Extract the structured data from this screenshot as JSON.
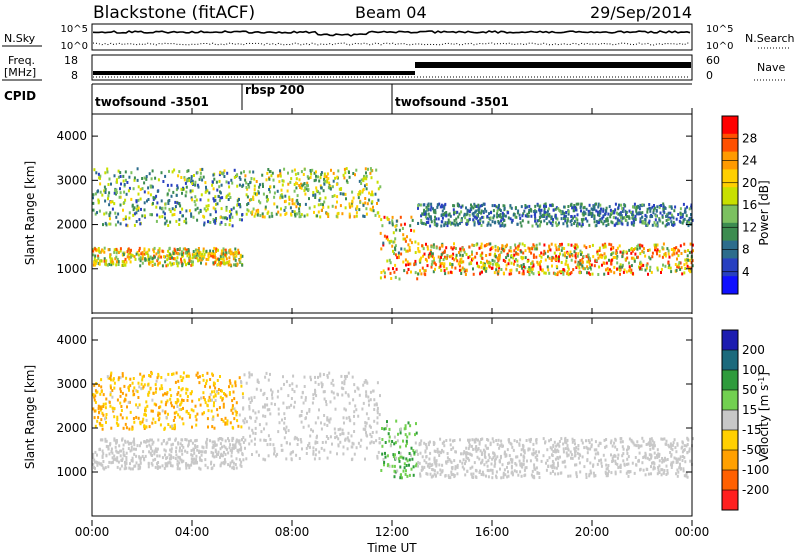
{
  "header": {
    "site": "Blackstone (fitACF)",
    "beam": "Beam 04",
    "date": "29/Sep/2014"
  },
  "top_panels": {
    "nsky": {
      "label": "N.Sky",
      "ticks": [
        "10^5",
        "10^0"
      ]
    },
    "nsearch": {
      "label": "N.Search",
      "ticks": [
        "10^5",
        "10^0"
      ]
    },
    "freq": {
      "label_line1": "Freq.",
      "label_line2": "[MHz]",
      "ticks": [
        "18",
        "8"
      ]
    },
    "nave": {
      "label": "Nave",
      "ticks": [
        "60",
        "0"
      ]
    },
    "cpid": {
      "label": "CPID",
      "segments": [
        {
          "name": "twofsound -3501",
          "start_h": 0,
          "end_h": 6
        },
        {
          "name": "rbsp 200",
          "start_h": 6,
          "end_h": 12
        },
        {
          "name": "twofsound -3501",
          "start_h": 12,
          "end_h": 24
        }
      ]
    }
  },
  "x_axis": {
    "label": "Time UT",
    "ticks": [
      "00:00",
      "04:00",
      "08:00",
      "12:00",
      "16:00",
      "20:00",
      "00:00"
    ]
  },
  "power_colorbar": {
    "label": "Power [dB]",
    "ticks": [
      "28",
      "24",
      "20",
      "16",
      "12",
      "8",
      "4"
    ],
    "colors": [
      "#ff0000",
      "#ff5000",
      "#ff9a00",
      "#ffd000",
      "#c8e000",
      "#7cc060",
      "#3c8c50",
      "#2c6c8c",
      "#2840c0",
      "#1010ff"
    ]
  },
  "velocity_colorbar": {
    "label": "Velocity [m s",
    "label_sup": "-1",
    "label_end": "]",
    "ticks": [
      "200",
      "100",
      "50",
      "15",
      "-15",
      "-50",
      "-100",
      "-200"
    ],
    "colors": [
      "#1c1cb0",
      "#1c6a7c",
      "#2f9b3c",
      "#72d050",
      "#c8c8c8",
      "#ffd000",
      "#ffa000",
      "#ff6000",
      "#ff2020"
    ]
  },
  "chart_data": [
    {
      "type": "heatmap",
      "title": "Power",
      "ylabel": "Slant Range [km]",
      "xlim": [
        "00:00",
        "24:00"
      ],
      "ylim": [
        0,
        4500
      ],
      "yticks": [
        1000,
        2000,
        3000,
        4000
      ],
      "colorbar": {
        "label": "Power [dB]",
        "range": [
          0,
          32
        ]
      },
      "echo_bands": [
        {
          "from": "00:00",
          "to": "06:00",
          "range_km": [
            1100,
            1500
          ],
          "power_db": [
            10,
            28
          ]
        },
        {
          "from": "00:00",
          "to": "06:00",
          "range_km": [
            2000,
            3300
          ],
          "power_db": [
            4,
            20
          ]
        },
        {
          "from": "06:00",
          "to": "11:30",
          "range_km": [
            2200,
            3300
          ],
          "power_db": [
            8,
            24
          ]
        },
        {
          "from": "11:30",
          "to": "13:00",
          "range_km": [
            800,
            2200
          ],
          "power_db": [
            8,
            32
          ]
        },
        {
          "from": "13:00",
          "to": "24:00",
          "range_km": [
            900,
            1600
          ],
          "power_db": [
            10,
            32
          ]
        },
        {
          "from": "13:00",
          "to": "24:00",
          "range_km": [
            2000,
            2500
          ],
          "power_db": [
            4,
            14
          ]
        }
      ]
    },
    {
      "type": "heatmap",
      "title": "Velocity",
      "ylabel": "Slant Range [km]",
      "xlim": [
        "00:00",
        "24:00"
      ],
      "ylim": [
        0,
        4500
      ],
      "yticks": [
        1000,
        2000,
        3000,
        4000
      ],
      "colorbar": {
        "label": "Velocity [m s-1]",
        "range": [
          -200,
          200
        ]
      },
      "echo_bands": [
        {
          "from": "00:00",
          "to": "06:00",
          "range_km": [
            1100,
            1800
          ],
          "velocity": [
            -15,
            15
          ]
        },
        {
          "from": "00:00",
          "to": "06:00",
          "range_km": [
            2000,
            3300
          ],
          "velocity": [
            -100,
            -15
          ]
        },
        {
          "from": "06:00",
          "to": "11:30",
          "range_km": [
            1300,
            3300
          ],
          "velocity": [
            -15,
            15
          ]
        },
        {
          "from": "11:30",
          "to": "13:00",
          "range_km": [
            900,
            2200
          ],
          "velocity": [
            15,
            100
          ]
        },
        {
          "from": "13:00",
          "to": "24:00",
          "range_km": [
            900,
            1800
          ],
          "velocity": [
            -15,
            15
          ]
        }
      ]
    }
  ]
}
